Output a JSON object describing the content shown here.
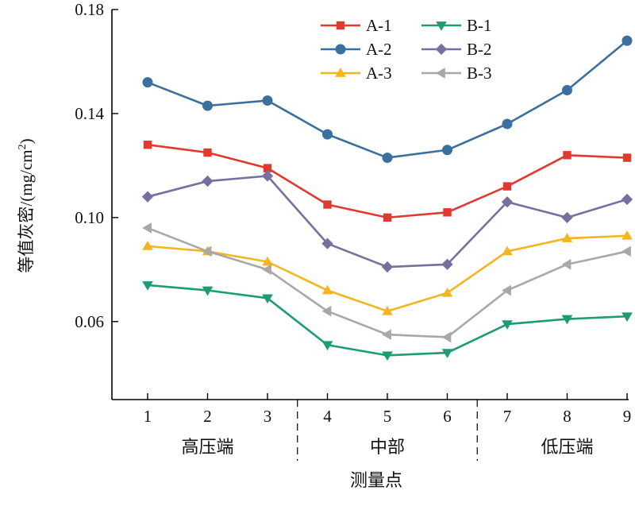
{
  "chart_data": {
    "type": "line",
    "xlabel": "测量点",
    "ylabel": "等值灰密/(mg/cm²)",
    "ylabel_main": "等值灰密/(mg/cm",
    "ylabel_sup": "2",
    "ylabel_close": ")",
    "x": [
      1,
      2,
      3,
      4,
      5,
      6,
      7,
      8,
      9
    ],
    "xtick_labels": [
      "1",
      "2",
      "3",
      "4",
      "5",
      "6",
      "7",
      "8",
      "9"
    ],
    "ylim": [
      0.03,
      0.18
    ],
    "yticks": [
      0.06,
      0.1,
      0.14,
      0.18
    ],
    "ytick_labels": [
      "0.06",
      "0.10",
      "0.14",
      "0.18"
    ],
    "regions": [
      {
        "label": "高压端",
        "from": 1,
        "to": 3
      },
      {
        "label": "中部",
        "from": 4,
        "to": 6
      },
      {
        "label": "低压端",
        "from": 7,
        "to": 9
      }
    ],
    "legend_position": "top-right",
    "grid": false,
    "series": [
      {
        "name": "A-1",
        "marker": "square",
        "color": "#e03a2f",
        "values": [
          0.128,
          0.125,
          0.119,
          0.105,
          0.1,
          0.102,
          0.112,
          0.124,
          0.123
        ]
      },
      {
        "name": "A-2",
        "marker": "circle",
        "color": "#3a6f9e",
        "values": [
          0.152,
          0.143,
          0.145,
          0.132,
          0.123,
          0.126,
          0.136,
          0.149,
          0.168
        ]
      },
      {
        "name": "A-3",
        "marker": "triangle-up",
        "color": "#f4b520",
        "values": [
          0.089,
          0.087,
          0.083,
          0.072,
          0.064,
          0.071,
          0.087,
          0.092,
          0.093
        ]
      },
      {
        "name": "B-1",
        "marker": "triangle-down",
        "color": "#1e9c72",
        "values": [
          0.074,
          0.072,
          0.069,
          0.051,
          0.047,
          0.048,
          0.059,
          0.061,
          0.062
        ]
      },
      {
        "name": "B-2",
        "marker": "diamond",
        "color": "#76709e",
        "values": [
          0.108,
          0.114,
          0.116,
          0.09,
          0.081,
          0.082,
          0.106,
          0.1,
          0.107
        ]
      },
      {
        "name": "B-3",
        "marker": "triangle-left",
        "color": "#a8a8a8",
        "values": [
          0.096,
          0.087,
          0.08,
          0.064,
          0.055,
          0.054,
          0.072,
          0.082,
          0.087
        ]
      }
    ]
  }
}
